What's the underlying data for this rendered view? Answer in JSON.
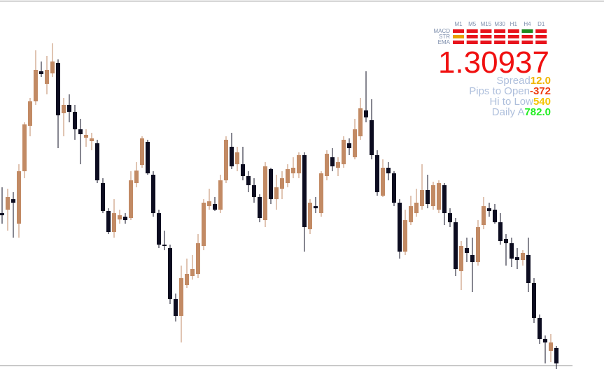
{
  "chart_data": {
    "type": "candlestick",
    "ylim": [
      1.30797,
      1.33537
    ],
    "up_color": "#c28a64",
    "down_color": "#0c0c20",
    "open": [
      1.32012,
      1.32037,
      1.32112,
      1.31937,
      1.32312,
      1.32637,
      1.32812,
      1.33027,
      1.32937,
      1.33012,
      1.33087,
      1.32727,
      1.32787,
      1.32737,
      1.32612,
      1.32552,
      1.32527,
      1.32512,
      1.32227,
      1.32027,
      1.31877,
      1.31967,
      1.31987,
      1.31977,
      1.32227,
      1.32357,
      1.32522,
      1.32287,
      1.32012,
      1.31787,
      1.31762,
      1.31397,
      1.31277,
      1.31497,
      1.31562,
      1.31577,
      1.31777,
      1.32062,
      1.32077,
      1.32037,
      1.32247,
      1.32487,
      1.32362,
      1.32362,
      1.32277,
      1.32212,
      1.32127,
      1.31962,
      1.32327,
      1.32112,
      1.32187,
      1.32227,
      1.32297,
      1.32297,
      1.32427,
      1.31897,
      1.32062,
      1.32012,
      1.32277,
      1.32412,
      1.32337,
      1.32362,
      1.32512,
      1.32412,
      1.32562,
      1.32747,
      1.32677,
      1.32427,
      1.32137,
      1.32337,
      1.32297,
      1.32087,
      1.31737,
      1.31947,
      1.32012,
      1.32062,
      1.32177,
      1.32062,
      1.32037,
      1.32212,
      1.32012,
      1.31947,
      1.31597,
      1.31762,
      1.31712,
      1.31662,
      1.31927,
      1.32047,
      1.32037,
      1.31947,
      1.31827,
      1.31797,
      1.31697,
      1.31677,
      1.31712,
      1.31512,
      1.31262,
      1.31112,
      1.31027,
      1.31047
    ],
    "high": [
      1.32197,
      1.32187,
      1.32162,
      1.32362,
      1.32662,
      1.32837,
      1.33177,
      1.33097,
      1.33137,
      1.33227,
      1.33112,
      1.32837,
      1.32862,
      1.32787,
      1.32687,
      1.32612,
      1.32587,
      1.32537,
      1.32262,
      1.32047,
      1.32112,
      1.32037,
      1.32012,
      1.32312,
      1.32377,
      1.32562,
      1.32537,
      1.32312,
      1.32037,
      1.31887,
      1.31787,
      1.31437,
      1.31637,
      1.31687,
      1.31712,
      1.31862,
      1.32112,
      1.32187,
      1.32127,
      1.32287,
      1.32562,
      1.32587,
      1.32487,
      1.32487,
      1.32312,
      1.32262,
      1.32147,
      1.32377,
      1.32337,
      1.32287,
      1.32312,
      1.32362,
      1.32412,
      1.32447,
      1.32447,
      1.32112,
      1.32127,
      1.32312,
      1.32462,
      1.32477,
      1.32412,
      1.32562,
      1.32547,
      1.32687,
      1.32837,
      1.33027,
      1.32827,
      1.32462,
      1.32397,
      1.32377,
      1.32312,
      1.32112,
      1.32037,
      1.32137,
      1.32187,
      1.32362,
      1.32287,
      1.32237,
      1.32247,
      1.32227,
      1.32047,
      1.31977,
      1.31812,
      1.31837,
      1.31837,
      1.31962,
      1.32127,
      1.32087,
      1.32077,
      1.32012,
      1.31862,
      1.31837,
      1.31762,
      1.31747,
      1.31837,
      1.31547,
      1.31287,
      1.31137,
      1.31147,
      1.31062
    ],
    "low": [
      1.31937,
      1.31887,
      1.31837,
      1.31837,
      1.32262,
      1.32562,
      1.32787,
      1.32987,
      1.32862,
      1.32987,
      1.32477,
      1.32562,
      1.32662,
      1.32537,
      1.32362,
      1.32487,
      1.32462,
      1.32227,
      1.32012,
      1.31862,
      1.31837,
      1.31937,
      1.31937,
      1.31962,
      1.32197,
      1.32337,
      1.32287,
      1.31987,
      1.31762,
      1.31747,
      1.31362,
      1.31237,
      1.31087,
      1.31477,
      1.31537,
      1.31547,
      1.31747,
      1.32037,
      1.32027,
      1.32012,
      1.32227,
      1.32327,
      1.32312,
      1.32247,
      1.32162,
      1.32087,
      1.31947,
      1.31912,
      1.32077,
      1.32037,
      1.32112,
      1.32197,
      1.32262,
      1.32262,
      1.31737,
      1.31862,
      1.32012,
      1.31987,
      1.32247,
      1.32312,
      1.32277,
      1.32337,
      1.32427,
      1.32397,
      1.32537,
      1.32662,
      1.32397,
      1.32137,
      1.32127,
      1.32247,
      1.32062,
      1.31687,
      1.31712,
      1.31927,
      1.31987,
      1.32037,
      1.32047,
      1.32037,
      1.32012,
      1.31927,
      1.31912,
      1.31562,
      1.31462,
      1.31662,
      1.31447,
      1.31637,
      1.31897,
      1.31987,
      1.31937,
      1.31787,
      1.31637,
      1.31627,
      1.31612,
      1.31637,
      1.31447,
      1.31227,
      1.31077,
      1.30937,
      1.30947,
      1.30897
    ],
    "close": [
      1.31997,
      1.32127,
      1.32087,
      1.32312,
      1.32647,
      1.32812,
      1.33037,
      1.33007,
      1.33037,
      1.33097,
      1.32712,
      1.32787,
      1.32737,
      1.32612,
      1.32577,
      1.32572,
      1.32547,
      1.32247,
      1.32027,
      1.31877,
      1.32012,
      1.31997,
      1.31962,
      1.32247,
      1.32317,
      1.32547,
      1.32297,
      1.32012,
      1.31787,
      1.31777,
      1.31397,
      1.31277,
      1.31547,
      1.31577,
      1.31612,
      1.31797,
      1.32087,
      1.32097,
      1.32037,
      1.32247,
      1.32537,
      1.32347,
      1.32447,
      1.32277,
      1.32212,
      1.32127,
      1.31977,
      1.32347,
      1.32112,
      1.32197,
      1.32262,
      1.32327,
      1.32337,
      1.32427,
      1.31912,
      1.32087,
      1.32047,
      1.32297,
      1.32437,
      1.32347,
      1.32377,
      1.32537,
      1.32477,
      1.32612,
      1.32762,
      1.32697,
      1.32427,
      1.32162,
      1.32337,
      1.32297,
      1.32087,
      1.31737,
      1.31962,
      1.32062,
      1.32087,
      1.32177,
      1.32077,
      1.32212,
      1.32227,
      1.32012,
      1.31947,
      1.31612,
      1.31777,
      1.31727,
      1.31662,
      1.31912,
      1.32062,
      1.32027,
      1.31947,
      1.31812,
      1.31797,
      1.31687,
      1.31677,
      1.31727,
      1.31512,
      1.31262,
      1.31112,
      1.31087,
      1.31087,
      1.30937
    ]
  },
  "dashboard": {
    "timeframes": [
      "M1",
      "M5",
      "M15",
      "M30",
      "H1",
      "H4",
      "D1"
    ],
    "indicators": [
      {
        "name": "MACD",
        "colors": [
          "#e8141c",
          "#e8141c",
          "#e8141c",
          "#e8141c",
          "#e8141c",
          "#1f8a1f",
          "#e8141c"
        ]
      },
      {
        "name": "STR",
        "colors": [
          "#e8a000",
          "#e8141c",
          "#e8141c",
          "#e8141c",
          "#e8141c",
          "#e8141c",
          "#e8141c"
        ]
      },
      {
        "name": "EMA",
        "colors": [
          "#e8141c",
          "#e8141c",
          "#e8141c",
          "#e8141c",
          "#e8141c",
          "#e8141c",
          "#e8141c"
        ]
      }
    ],
    "price": "1.30937",
    "stats": [
      {
        "label": "Spread",
        "value": "12.0",
        "color": "#f0b400"
      },
      {
        "label": "Pips to Open",
        "value": "-372",
        "color": "#ee3a10"
      },
      {
        "label": "Hi to Low",
        "value": "540",
        "color": "#f5c400"
      },
      {
        "label": "Daily A",
        "value": "782.0",
        "color": "#22ee22"
      }
    ]
  }
}
